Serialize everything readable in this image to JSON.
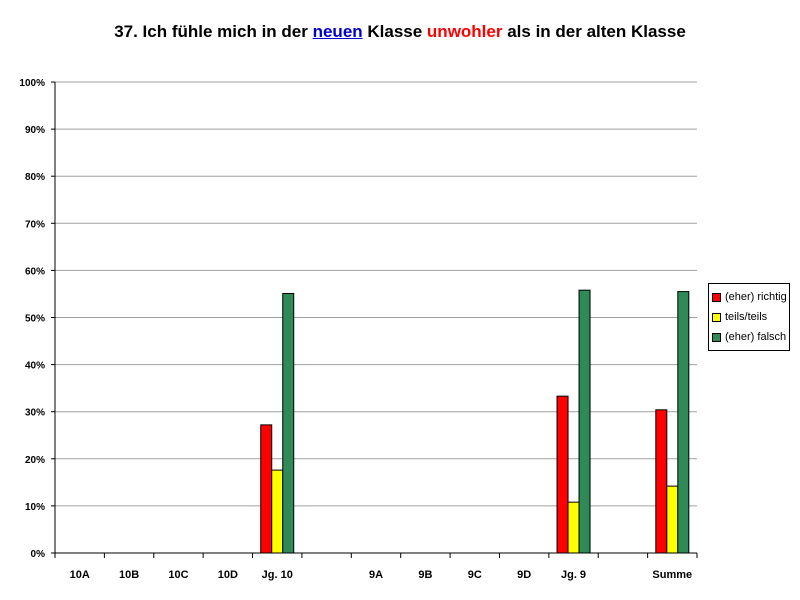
{
  "title": {
    "part1": "37. Ich fühle mich in der ",
    "neu": "neuen",
    "part2": " Klasse ",
    "unw": "unwohler",
    "part3": " als in der alten Klasse"
  },
  "chart_data": {
    "type": "bar",
    "title": "37. Ich fühle mich in der neuen Klasse unwohler als in der alten Klasse",
    "categories": [
      "10A",
      "10B",
      "10C",
      "10D",
      "Jg. 10",
      "",
      "9A",
      "9B",
      "9C",
      "9D",
      "Jg. 9",
      "",
      "Summe"
    ],
    "series": [
      {
        "name": "(eher) richtig",
        "color": "#ff0000",
        "values": [
          null,
          null,
          null,
          null,
          27.2,
          null,
          null,
          null,
          null,
          null,
          33.3,
          null,
          30.4
        ]
      },
      {
        "name": "teils/teils",
        "color": "#ffff00",
        "values": [
          null,
          null,
          null,
          null,
          17.6,
          null,
          null,
          null,
          null,
          null,
          10.8,
          null,
          14.2
        ]
      },
      {
        "name": "(eher) falsch",
        "color": "#2e8b57",
        "values": [
          null,
          null,
          null,
          null,
          55.1,
          null,
          null,
          null,
          null,
          null,
          55.8,
          null,
          55.5
        ]
      }
    ],
    "ylim": [
      0,
      100
    ],
    "yticks": [
      "0%",
      "10%",
      "20%",
      "30%",
      "40%",
      "50%",
      "60%",
      "70%",
      "80%",
      "90%",
      "100%"
    ],
    "grid": true,
    "legend_position": "right"
  }
}
